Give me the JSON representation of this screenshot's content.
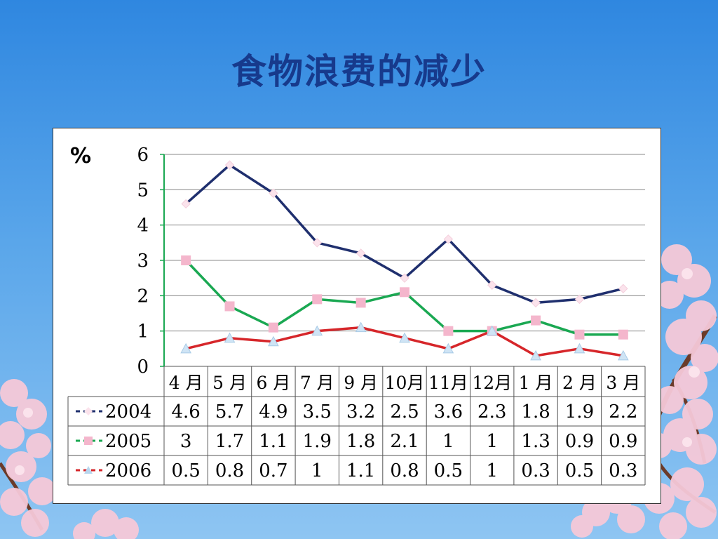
{
  "slide": {
    "title": "食物浪费的减少",
    "unit": "%"
  },
  "chart_data": {
    "type": "line",
    "categories": [
      "4 月",
      "5 月",
      "6 月",
      "7 月",
      "9 月",
      "10月",
      "11月",
      "12月",
      "1 月",
      "2 月",
      "3 月"
    ],
    "series": [
      {
        "name": "2004",
        "values": [
          4.6,
          5.7,
          4.9,
          3.5,
          3.2,
          2.5,
          3.6,
          2.3,
          1.8,
          1.9,
          2.2
        ],
        "color": "#1f2f6e"
      },
      {
        "name": "2005",
        "values": [
          3,
          1.7,
          1.1,
          1.9,
          1.8,
          2.1,
          1,
          1,
          1.3,
          0.9,
          0.9
        ],
        "color": "#1aa852"
      },
      {
        "name": "2006",
        "values": [
          0.5,
          0.8,
          0.7,
          1,
          1.1,
          0.8,
          0.5,
          1,
          0.3,
          0.5,
          0.3
        ],
        "color": "#d6262a"
      }
    ],
    "table_values": [
      [
        "4.6",
        "5.7",
        "4.9",
        "3.5",
        "3.2",
        "2.5",
        "3.6",
        "2.3",
        "1.8",
        "1.9",
        "2.2"
      ],
      [
        "3",
        "1.7",
        "1.1",
        "1.9",
        "1.8",
        "2.1",
        "1",
        "1",
        "1.3",
        "0.9",
        "0.9"
      ],
      [
        "0.5",
        "0.8",
        "0.7",
        "1",
        "1.1",
        "0.8",
        "0.5",
        "1",
        "0.3",
        "0.5",
        "0.3"
      ]
    ],
    "y_ticks": [
      "0",
      "1",
      "2",
      "3",
      "4",
      "5",
      "6"
    ],
    "ylim": [
      0,
      6
    ],
    "grid": true,
    "legend": "data-table"
  }
}
